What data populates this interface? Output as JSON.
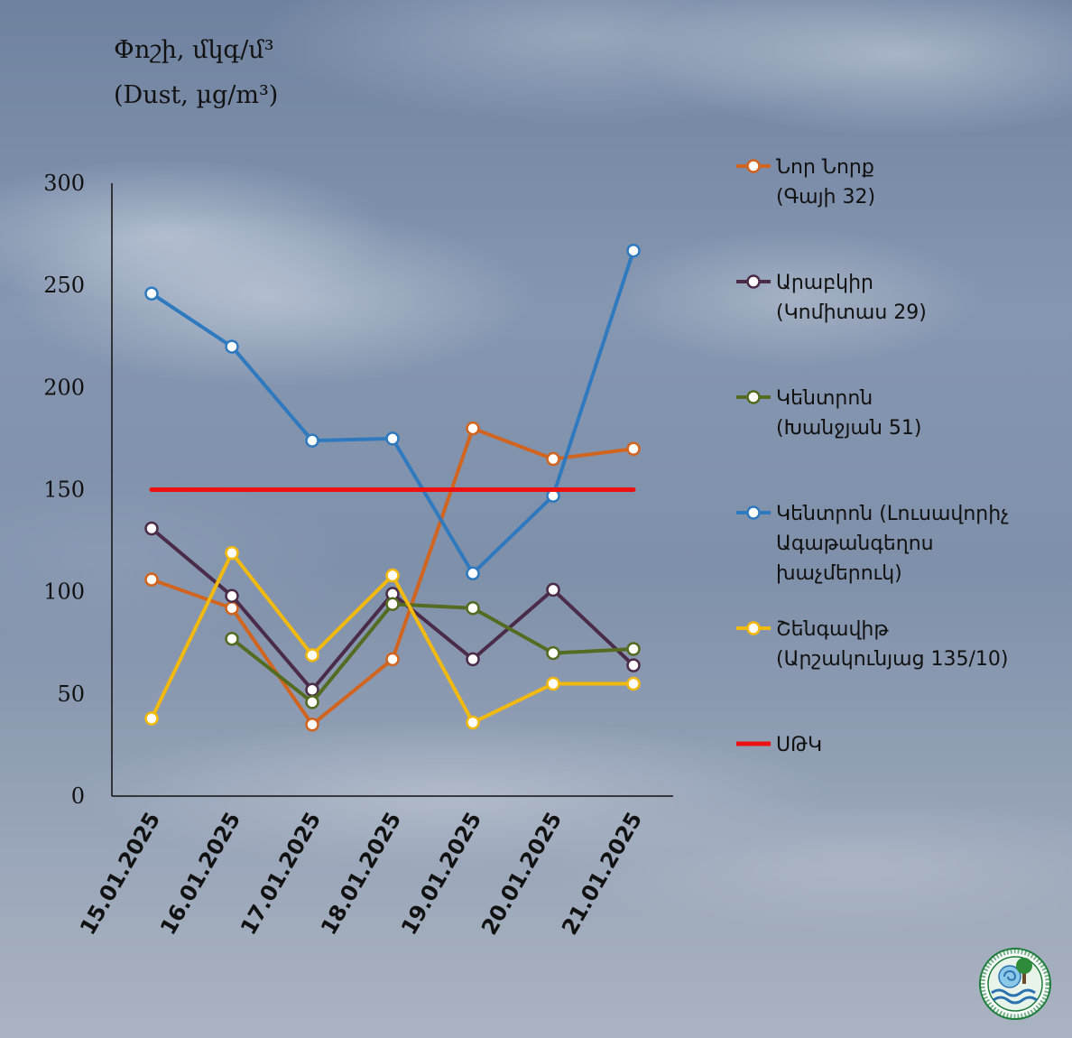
{
  "chart_data": {
    "type": "line",
    "title_lines": [
      "Փոշի, մկգ/մ³",
      "(Dust, µg/m³)"
    ],
    "xlabel": "",
    "ylabel": "",
    "ylim": [
      0,
      300
    ],
    "yticks": [
      "0",
      "50",
      "100",
      "150",
      "200",
      "250",
      "300"
    ],
    "categories": [
      "15.01.2025",
      "16.01.2025",
      "17.01.2025",
      "18.01.2025",
      "19.01.2025",
      "20.01.2025",
      "21.01.2025"
    ],
    "grid": false,
    "legend_position": "right",
    "series": [
      {
        "name": "Նոր Նորք (Գայի 32)",
        "legend_lines": [
          "Նոր Նորք",
          "(Գայի 32)"
        ],
        "color": "#d1641f",
        "markers": true,
        "values": [
          106,
          92,
          35,
          67,
          180,
          165,
          170
        ]
      },
      {
        "name": "Արաբկիր (Կոմիտաս 29)",
        "legend_lines": [
          "Արաբկիր",
          "(Կոմիտաս 29)"
        ],
        "color": "#4a2c49",
        "markers": true,
        "values": [
          131,
          98,
          52,
          99,
          67,
          101,
          64
        ]
      },
      {
        "name": "Կենտրոն (Խանջյան 51)",
        "legend_lines": [
          "Կենտրոն",
          "(Խանջյան 51)"
        ],
        "color": "#546b22",
        "markers": true,
        "values": [
          null,
          77,
          46,
          94,
          92,
          70,
          72
        ]
      },
      {
        "name": "Կենտրոն (Լուսավորիչ Ագաթանգեղոս խաչմերուկ)",
        "legend_lines": [
          "Կենտրոն (Լուսավորիչ",
          "Ագաթանգեղոս",
          "խաչմերուկ)"
        ],
        "color": "#2f79bf",
        "markers": true,
        "values": [
          246,
          220,
          174,
          175,
          109,
          147,
          267
        ]
      },
      {
        "name": "Շենգավիթ (Արշակունյաց 135/10)",
        "legend_lines": [
          "Շենգավիթ",
          "(Արշակունյաց 135/10)"
        ],
        "color": "#f2b90e",
        "markers": true,
        "values": [
          38,
          119,
          69,
          108,
          36,
          55,
          55
        ]
      },
      {
        "name": "ՍԹԿ",
        "legend_lines": [
          "ՍԹԿ"
        ],
        "color": "#ee1111",
        "markers": false,
        "values": [
          150,
          150,
          150,
          150,
          150,
          150,
          150
        ]
      }
    ]
  },
  "logo": {
    "ring_text": "HYDROMETEOROLOGY AND MONITORING CENTER SNCO"
  }
}
